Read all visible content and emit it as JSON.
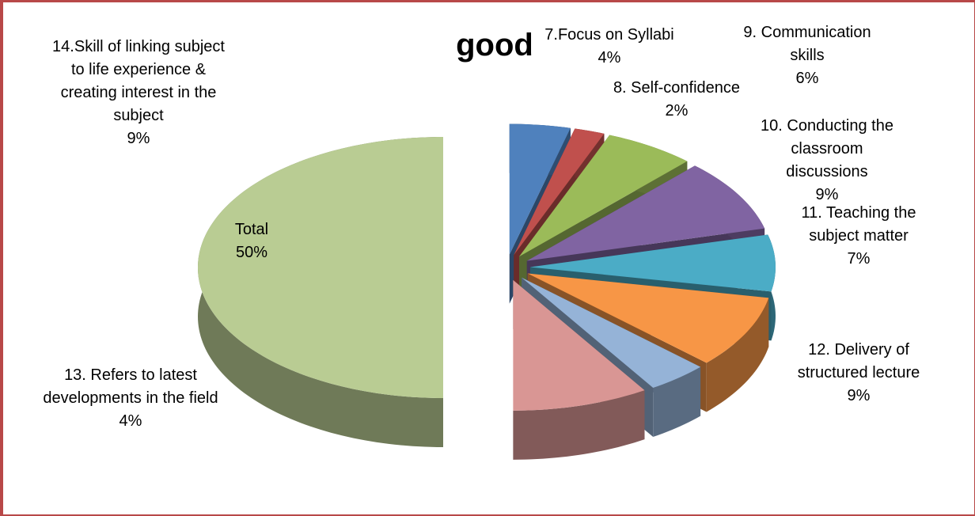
{
  "chart_data": {
    "type": "pie",
    "title": "good",
    "categories": [
      "7.Focus on Syllabi",
      "8. Self-confidence",
      "9. Communication skills",
      "10. Conducting the classroom discussions",
      "11. Teaching the subject matter",
      "12. Delivery of structured lecture",
      "13. Refers to latest developments in the field",
      "14.Skill of linking subject to life experience & creating interest in the subject",
      "Total"
    ],
    "values": [
      4,
      2,
      6,
      9,
      7,
      9,
      4,
      9,
      50
    ],
    "value_labels": [
      "4%",
      "2%",
      "6%",
      "9%",
      "7%",
      "9%",
      "4%",
      "9%",
      "50%"
    ],
    "colors": [
      "#4f81bd",
      "#c0504d",
      "#9bbb59",
      "#8064a2",
      "#4bacc6",
      "#f79646",
      "#95b3d7",
      "#d99694",
      "#b9cc93"
    ]
  }
}
